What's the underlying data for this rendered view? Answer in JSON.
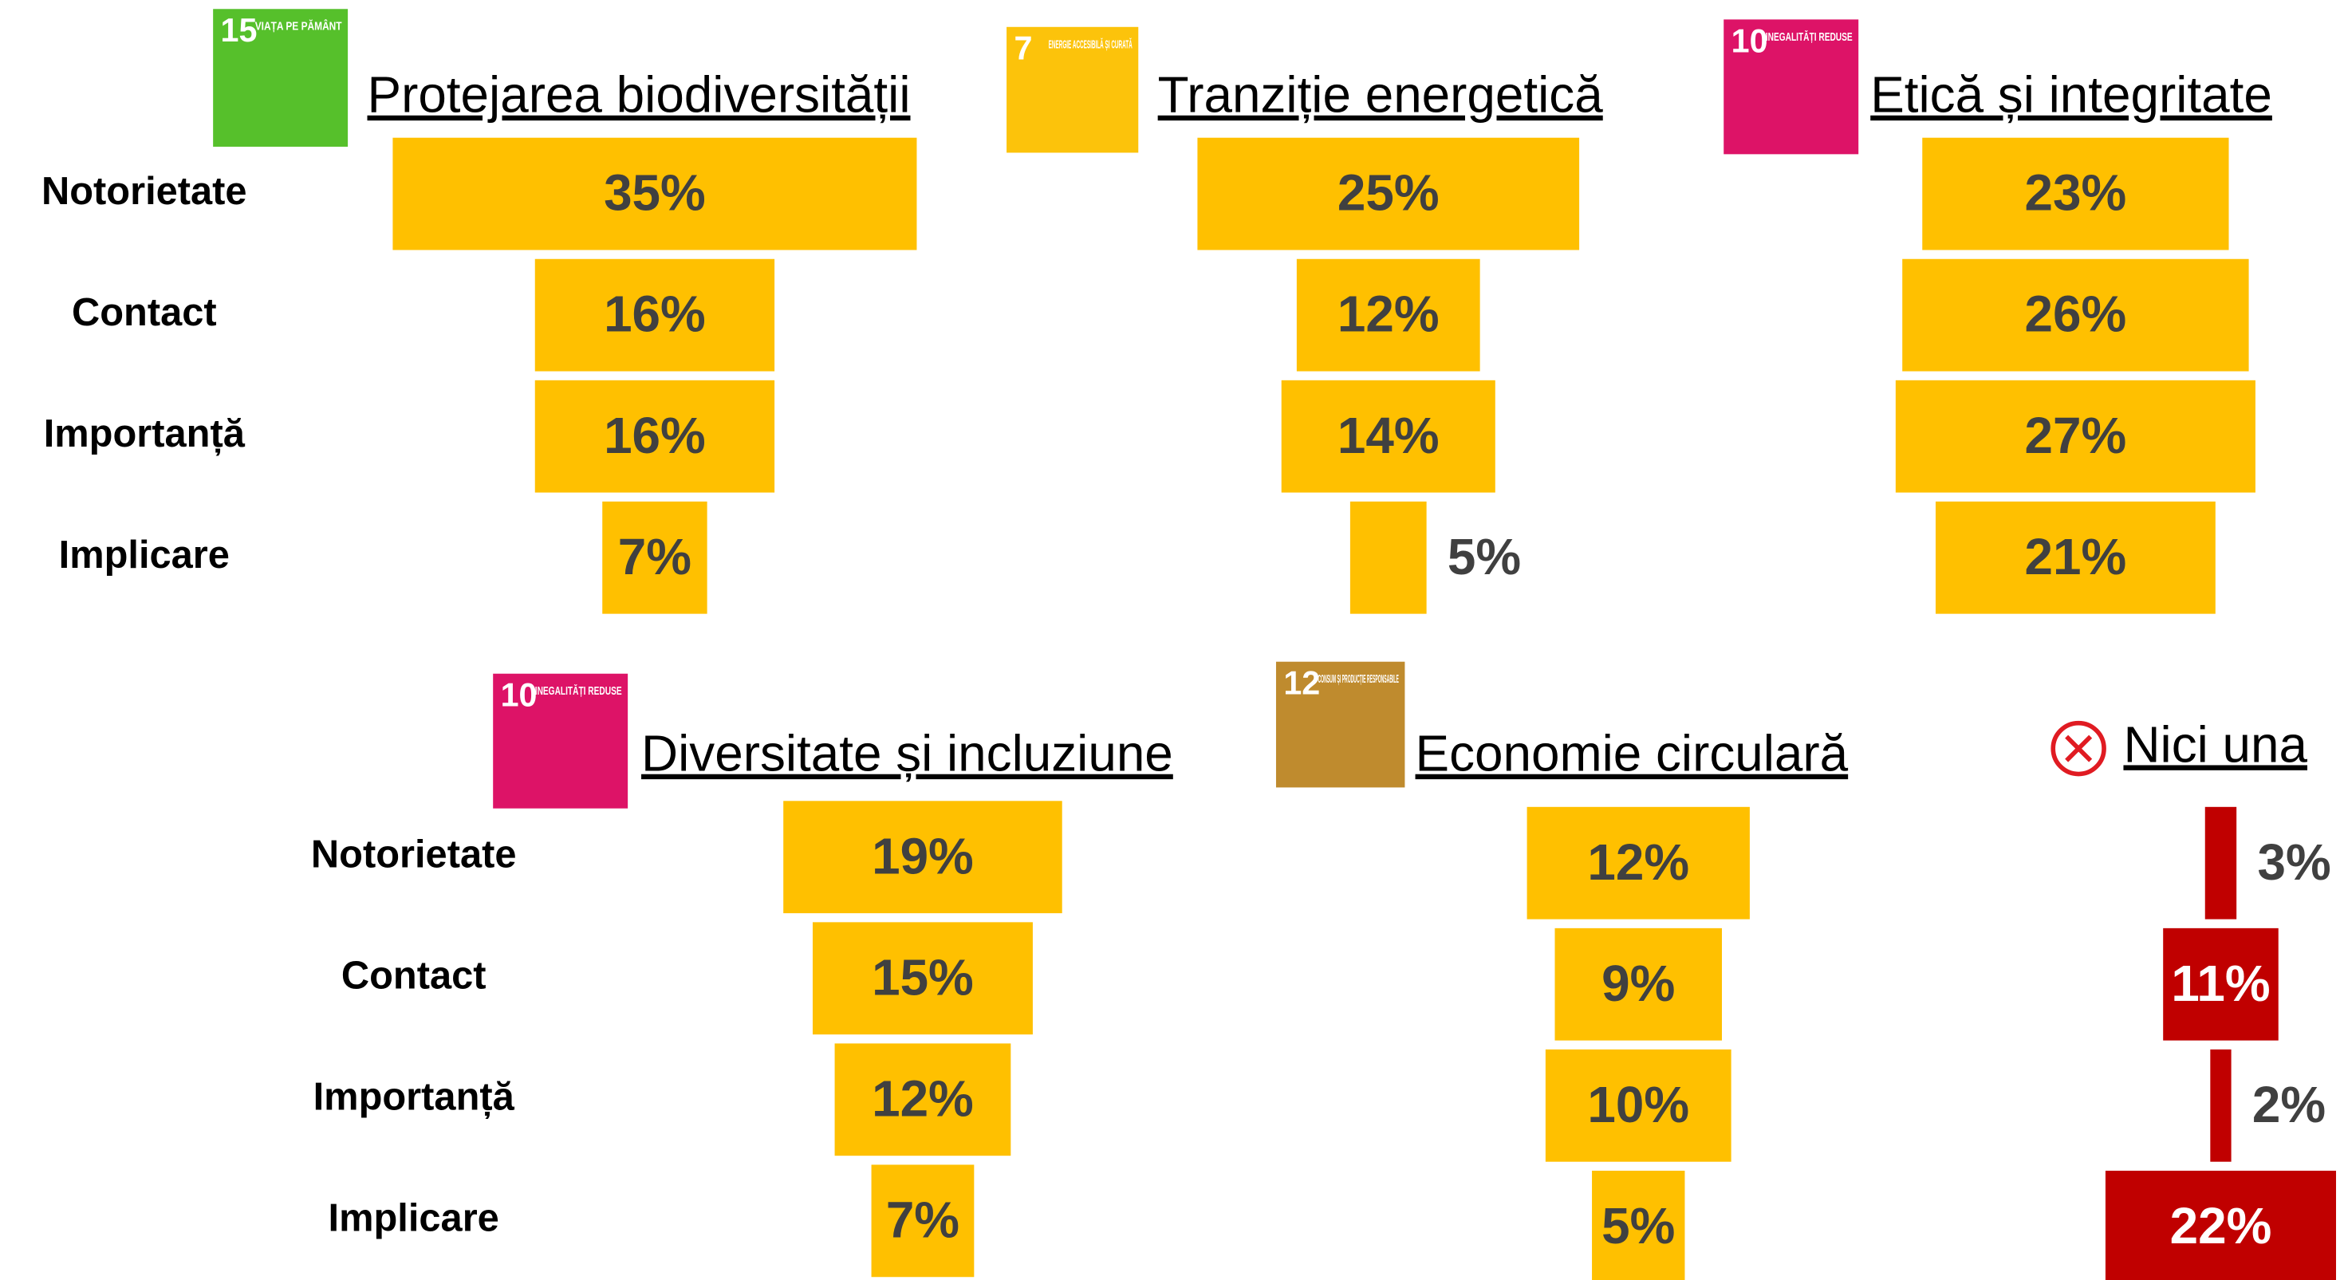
{
  "chart_data": [
    {
      "type": "funnel",
      "title": "Protejarea biodiversității",
      "icon_number": "15",
      "icon_text": "VIAȚA PE PĂMÂNT",
      "icon_color": "#56c02b",
      "categories": [
        "Notorietate",
        "Contact",
        "Importanță",
        "Implicare"
      ],
      "values": [
        35,
        16,
        16,
        7
      ],
      "value_labels": [
        "35%",
        "16%",
        "16%",
        "7%"
      ],
      "color": "#ffc000"
    },
    {
      "type": "funnel",
      "title": "Tranziție energetică",
      "icon_number": "7",
      "icon_text": "ENERGIE ACCESIBILĂ ȘI CURATĂ",
      "icon_color": "#fcc30b",
      "values": [
        25,
        12,
        14,
        5
      ],
      "value_labels": [
        "25%",
        "12%",
        "14%",
        "5%"
      ],
      "color": "#ffc000"
    },
    {
      "type": "funnel",
      "title": "Etică și integritate",
      "icon_number": "10",
      "icon_text": "INEGALITĂȚI REDUSE",
      "icon_color": "#dd1367",
      "values": [
        23,
        26,
        27,
        21
      ],
      "value_labels": [
        "23%",
        "26%",
        "27%",
        "21%"
      ],
      "color": "#ffc000"
    },
    {
      "type": "funnel",
      "title": "Diversitate și incluziune",
      "icon_number": "10",
      "icon_text": "INEGALITĂȚI REDUSE",
      "icon_color": "#dd1367",
      "categories": [
        "Notorietate",
        "Contact",
        "Importanță",
        "Implicare"
      ],
      "values": [
        19,
        15,
        12,
        7
      ],
      "value_labels": [
        "19%",
        "15%",
        "12%",
        "7%"
      ],
      "color": "#ffc000"
    },
    {
      "type": "funnel",
      "title": "Economie circulară",
      "icon_number": "12",
      "icon_text": "CONSUM ȘI PRODUCȚIE RESPONSABILE",
      "icon_color": "#bf8b2e",
      "values": [
        12,
        9,
        10,
        5
      ],
      "value_labels": [
        "12%",
        "9%",
        "10%",
        "5%"
      ],
      "color": "#ffc000"
    },
    {
      "type": "funnel",
      "title": "Nici una",
      "values": [
        3,
        11,
        2,
        22
      ],
      "value_labels": [
        "3%",
        "11%",
        "2%",
        "22%"
      ],
      "color": "#c00000"
    }
  ]
}
